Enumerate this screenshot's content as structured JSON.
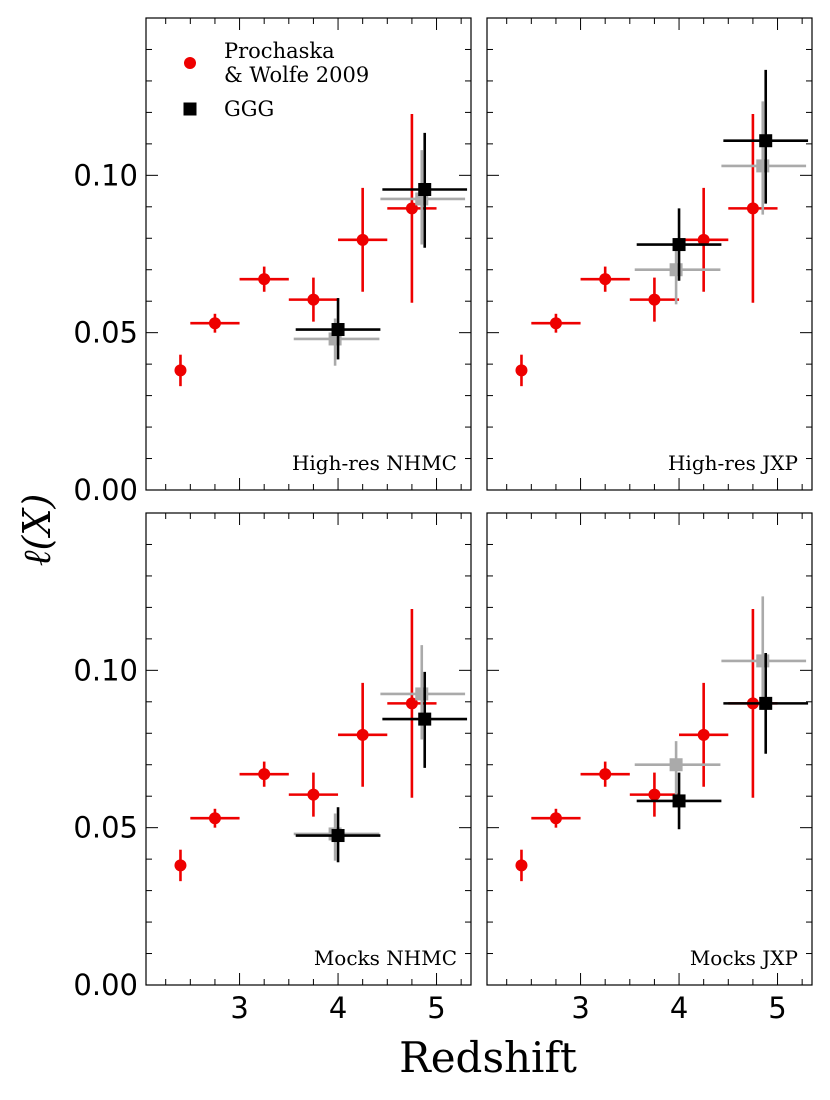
{
  "chart_data": {
    "type": "scatter",
    "layout": "2x2 grid, shared axes",
    "xlabel": "Redshift",
    "ylabel": "ℓ(X)",
    "xlim": [
      2.05,
      5.35
    ],
    "ylim": [
      0.0,
      0.15
    ],
    "xticks": [
      3,
      4,
      5
    ],
    "yticks": [
      0.0,
      0.05,
      0.1
    ],
    "ytick_labels": [
      "0.00",
      "0.05",
      "0.10"
    ],
    "legend": {
      "position": "top-left",
      "entries": [
        {
          "label_lines": [
            "Prochaska",
            "& Wolfe 2009"
          ],
          "marker": "circle",
          "color": "#ee0000"
        },
        {
          "label_lines": [
            "GGG"
          ],
          "marker": "square",
          "color": "#000000"
        }
      ]
    },
    "colors": {
      "reference": "#ee0000",
      "ggg": "#000000",
      "alt": "#aaaaaa"
    },
    "reference_series": {
      "name": "Prochaska & Wolfe 2009",
      "points": [
        {
          "x": 2.4,
          "xerr": 0.0,
          "y": 0.038,
          "yerr_lo": 0.005,
          "yerr_hi": 0.005
        },
        {
          "x": 2.75,
          "xerr": 0.25,
          "y": 0.053,
          "yerr_lo": 0.003,
          "yerr_hi": 0.003
        },
        {
          "x": 3.25,
          "xerr": 0.25,
          "y": 0.067,
          "yerr_lo": 0.004,
          "yerr_hi": 0.004
        },
        {
          "x": 3.75,
          "xerr": 0.25,
          "y": 0.0605,
          "yerr_lo": 0.007,
          "yerr_hi": 0.007
        },
        {
          "x": 4.25,
          "xerr": 0.25,
          "y": 0.0795,
          "yerr_lo": 0.0165,
          "yerr_hi": 0.0165
        },
        {
          "x": 4.75,
          "xerr": 0.25,
          "y": 0.0895,
          "yerr_lo": 0.03,
          "yerr_hi": 0.03
        }
      ]
    },
    "panels": [
      {
        "label": "High-res NHMC",
        "ggg": [
          {
            "x": 4.0,
            "xlo": 3.57,
            "xhi": 4.43,
            "y": 0.051,
            "ylo": 0.0415,
            "yhi": 0.061
          },
          {
            "x": 4.88,
            "xlo": 4.45,
            "xhi": 5.31,
            "y": 0.0955,
            "ylo": 0.077,
            "yhi": 0.1135
          }
        ],
        "alt": [
          {
            "x": 3.97,
            "xlo": 3.55,
            "xhi": 4.42,
            "y": 0.048,
            "ylo": 0.0395,
            "yhi": 0.0545
          },
          {
            "x": 4.85,
            "xlo": 4.43,
            "xhi": 5.29,
            "y": 0.0925,
            "ylo": 0.078,
            "yhi": 0.108
          }
        ]
      },
      {
        "label": "High-res JXP",
        "ggg": [
          {
            "x": 4.0,
            "xlo": 3.57,
            "xhi": 4.43,
            "y": 0.078,
            "ylo": 0.0665,
            "yhi": 0.0895
          },
          {
            "x": 4.88,
            "xlo": 4.45,
            "xhi": 5.31,
            "y": 0.111,
            "ylo": 0.091,
            "yhi": 0.1335
          }
        ],
        "alt": [
          {
            "x": 3.97,
            "xlo": 3.55,
            "xhi": 4.42,
            "y": 0.07,
            "ylo": 0.059,
            "yhi": 0.0775
          },
          {
            "x": 4.85,
            "xlo": 4.43,
            "xhi": 5.29,
            "y": 0.103,
            "ylo": 0.0875,
            "yhi": 0.1235
          }
        ]
      },
      {
        "label": "Mocks NHMC",
        "ggg": [
          {
            "x": 4.0,
            "xlo": 3.57,
            "xhi": 4.43,
            "y": 0.0475,
            "ylo": 0.039,
            "yhi": 0.0565
          },
          {
            "x": 4.88,
            "xlo": 4.45,
            "xhi": 5.31,
            "y": 0.0845,
            "ylo": 0.069,
            "yhi": 0.0995
          }
        ],
        "alt": [
          {
            "x": 3.97,
            "xlo": 3.55,
            "xhi": 4.42,
            "y": 0.048,
            "ylo": 0.0395,
            "yhi": 0.0545
          },
          {
            "x": 4.85,
            "xlo": 4.43,
            "xhi": 5.29,
            "y": 0.0925,
            "ylo": 0.078,
            "yhi": 0.108
          }
        ]
      },
      {
        "label": "Mocks JXP",
        "ggg": [
          {
            "x": 4.0,
            "xlo": 3.57,
            "xhi": 4.43,
            "y": 0.0585,
            "ylo": 0.0495,
            "yhi": 0.0675
          },
          {
            "x": 4.88,
            "xlo": 4.45,
            "xhi": 5.31,
            "y": 0.0895,
            "ylo": 0.0735,
            "yhi": 0.1055
          }
        ],
        "alt": [
          {
            "x": 3.97,
            "xlo": 3.55,
            "xhi": 4.42,
            "y": 0.07,
            "ylo": 0.059,
            "yhi": 0.0775
          },
          {
            "x": 4.85,
            "xlo": 4.43,
            "xhi": 5.29,
            "y": 0.103,
            "ylo": 0.0875,
            "yhi": 0.1235
          }
        ]
      }
    ]
  }
}
